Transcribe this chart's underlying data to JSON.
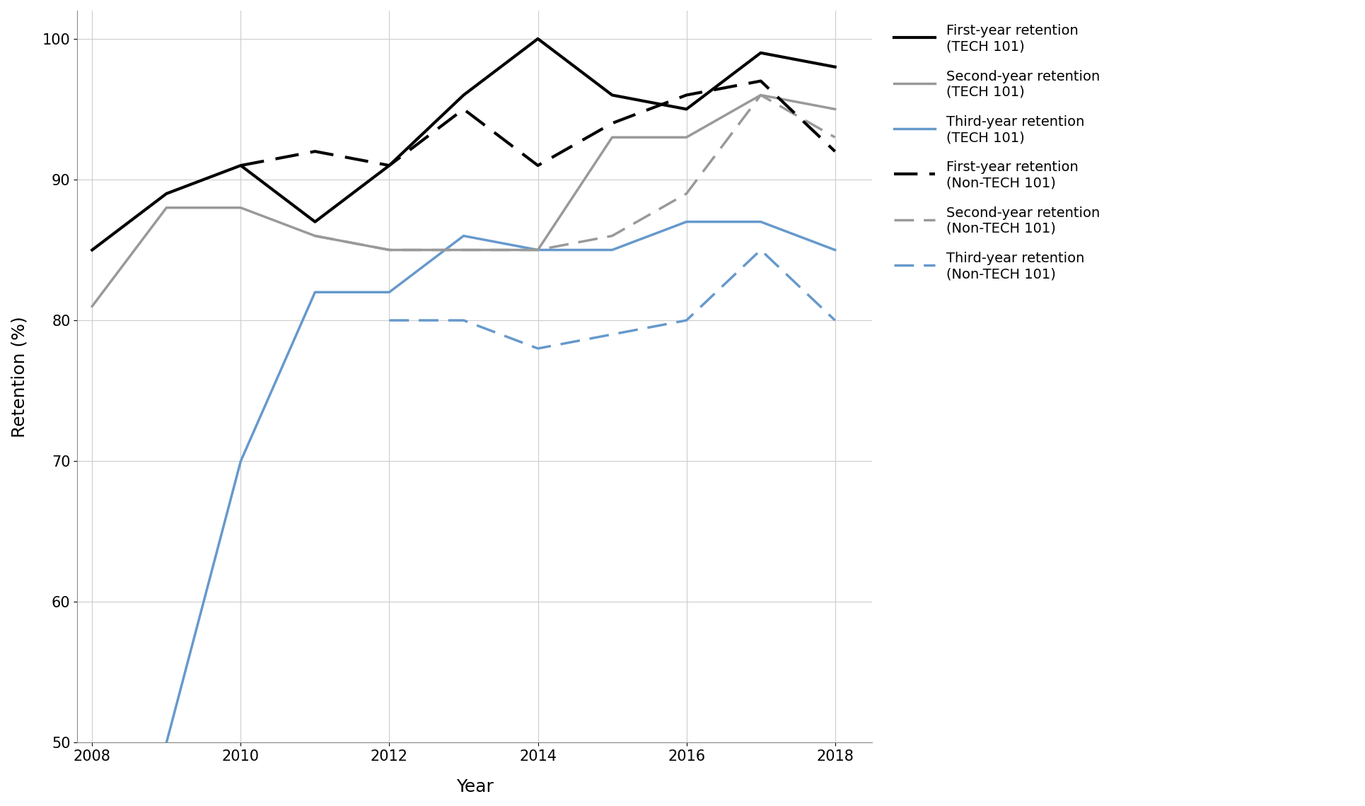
{
  "years": [
    2008,
    2009,
    2010,
    2011,
    2012,
    2013,
    2014,
    2015,
    2016,
    2017,
    2018
  ],
  "first_year_tech": [
    85,
    89,
    91,
    87,
    91,
    96,
    100,
    96,
    95,
    99,
    98
  ],
  "second_year_tech": [
    81,
    88,
    88,
    86,
    85,
    85,
    85,
    93,
    93,
    96,
    95
  ],
  "third_year_tech": [
    null,
    50,
    70,
    82,
    82,
    86,
    85,
    85,
    87,
    87,
    85
  ],
  "first_year_nontech": [
    null,
    null,
    91,
    92,
    91,
    95,
    91,
    94,
    96,
    97,
    92
  ],
  "second_year_nontech": [
    null,
    null,
    null,
    86,
    85,
    85,
    85,
    86,
    89,
    96,
    93
  ],
  "third_year_nontech": [
    null,
    null,
    null,
    null,
    80,
    80,
    78,
    79,
    80,
    85,
    80
  ],
  "line_colors": {
    "first_year_tech": "#000000",
    "second_year_tech": "#999999",
    "third_year_tech": "#6699cc",
    "first_year_nontech": "#000000",
    "second_year_nontech": "#999999",
    "third_year_nontech": "#6699cc"
  },
  "ylabel": "Retention (%)",
  "xlabel": "Year",
  "ylim": [
    50,
    102
  ],
  "yticks": [
    50,
    60,
    70,
    80,
    90,
    100
  ],
  "xlim": [
    2007.8,
    2018.5
  ],
  "xticks": [
    2008,
    2010,
    2012,
    2014,
    2016,
    2018
  ],
  "legend_entries": [
    "First-year retention\n(TECH 101)",
    "Second-year retention\n(TECH 101)",
    "Third-year retention\n(TECH 101)",
    "First-year retention\n(Non-TECH 101)",
    "Second-year retention\n(Non-TECH 101)",
    "Third-year retention\n(Non-TECH 101)"
  ],
  "background_color": "#ffffff",
  "grid_color": "#cccccc",
  "linewidth_solid": 2.5,
  "linewidth_dashed": 2.5
}
